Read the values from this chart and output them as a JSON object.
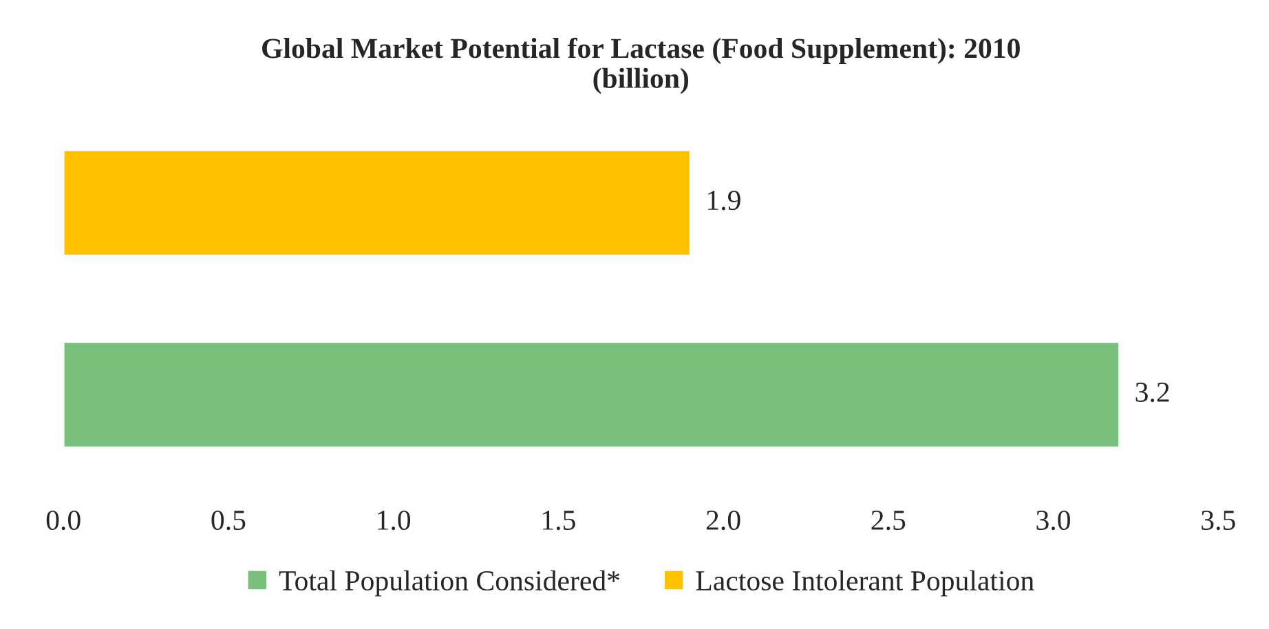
{
  "chart_data": {
    "type": "bar",
    "orientation": "horizontal",
    "title": "Global Market Potential for Lactase (Food Supplement): 2010\n(billion)",
    "categories": [
      null,
      null
    ],
    "series": [
      {
        "name": "Total Population Considered*",
        "color": "#77bf7b",
        "values": [
          null,
          3.2
        ]
      },
      {
        "name": "Lactose Intolerant Population",
        "color": "#ffc000",
        "values": [
          1.9,
          null
        ]
      }
    ],
    "xlim": [
      0,
      3.5
    ],
    "xticks": [
      {
        "value": 0,
        "label": "0.0"
      },
      {
        "value": 0.5,
        "label": "0.5"
      },
      {
        "value": 1,
        "label": "1.0"
      },
      {
        "value": 1.5,
        "label": "1.5"
      },
      {
        "value": 2,
        "label": "2.0"
      },
      {
        "value": 2.5,
        "label": "2.5"
      },
      {
        "value": 3,
        "label": "3.0"
      },
      {
        "value": 3.5,
        "label": "3.5"
      }
    ],
    "stacked": true,
    "data_labels": true,
    "legend": "bottom",
    "grid": false
  }
}
